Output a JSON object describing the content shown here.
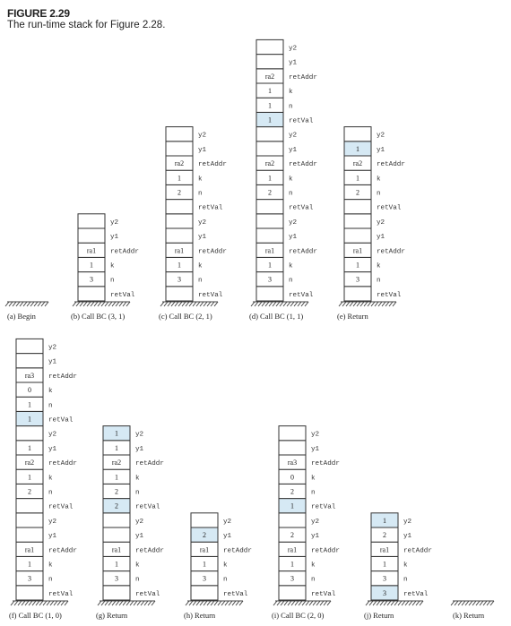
{
  "figure": {
    "number": "FIGURE 2.29",
    "caption": "The run-time stack for Figure 2.28."
  },
  "highlight_color": "#d6e9f4",
  "stacks": [
    {
      "id": "a",
      "caption": "(a) Begin",
      "cells": []
    },
    {
      "id": "b",
      "caption": "(b) Call BC (3, 1)",
      "cells": [
        {
          "label": "retVal",
          "value": ""
        },
        {
          "label": "n",
          "value": "3"
        },
        {
          "label": "k",
          "value": "1"
        },
        {
          "label": "retAddr",
          "value": "ra1"
        },
        {
          "label": "y1",
          "value": ""
        },
        {
          "label": "y2",
          "value": ""
        }
      ]
    },
    {
      "id": "c",
      "caption": "(c) Call BC (2, 1)",
      "cells": [
        {
          "label": "retVal",
          "value": ""
        },
        {
          "label": "n",
          "value": "3"
        },
        {
          "label": "k",
          "value": "1"
        },
        {
          "label": "retAddr",
          "value": "ra1"
        },
        {
          "label": "y1",
          "value": ""
        },
        {
          "label": "y2",
          "value": ""
        },
        {
          "label": "retVal",
          "value": ""
        },
        {
          "label": "n",
          "value": "2"
        },
        {
          "label": "k",
          "value": "1"
        },
        {
          "label": "retAddr",
          "value": "ra2"
        },
        {
          "label": "y1",
          "value": ""
        },
        {
          "label": "y2",
          "value": ""
        }
      ]
    },
    {
      "id": "d",
      "caption": "(d) Call BC (1, 1)",
      "cells": [
        {
          "label": "retVal",
          "value": ""
        },
        {
          "label": "n",
          "value": "3"
        },
        {
          "label": "k",
          "value": "1"
        },
        {
          "label": "retAddr",
          "value": "ra1"
        },
        {
          "label": "y1",
          "value": ""
        },
        {
          "label": "y2",
          "value": ""
        },
        {
          "label": "retVal",
          "value": ""
        },
        {
          "label": "n",
          "value": "2"
        },
        {
          "label": "k",
          "value": "1"
        },
        {
          "label": "retAddr",
          "value": "ra2"
        },
        {
          "label": "y1",
          "value": ""
        },
        {
          "label": "y2",
          "value": ""
        },
        {
          "label": "retVal",
          "value": "1",
          "hl": true
        },
        {
          "label": "n",
          "value": "1"
        },
        {
          "label": "k",
          "value": "1"
        },
        {
          "label": "retAddr",
          "value": "ra2"
        },
        {
          "label": "y1",
          "value": ""
        },
        {
          "label": "y2",
          "value": ""
        }
      ]
    },
    {
      "id": "e",
      "caption": "(e) Return",
      "cells": [
        {
          "label": "retVal",
          "value": ""
        },
        {
          "label": "n",
          "value": "3"
        },
        {
          "label": "k",
          "value": "1"
        },
        {
          "label": "retAddr",
          "value": "ra1"
        },
        {
          "label": "y1",
          "value": ""
        },
        {
          "label": "y2",
          "value": ""
        },
        {
          "label": "retVal",
          "value": ""
        },
        {
          "label": "n",
          "value": "2"
        },
        {
          "label": "k",
          "value": "1"
        },
        {
          "label": "retAddr",
          "value": "ra2"
        },
        {
          "label": "y1",
          "value": "1",
          "hl": true
        },
        {
          "label": "y2",
          "value": ""
        }
      ]
    },
    {
      "id": "f",
      "caption": "(f) Call BC (1, 0)",
      "cells": [
        {
          "label": "retVal",
          "value": ""
        },
        {
          "label": "n",
          "value": "3"
        },
        {
          "label": "k",
          "value": "1"
        },
        {
          "label": "retAddr",
          "value": "ra1"
        },
        {
          "label": "y1",
          "value": ""
        },
        {
          "label": "y2",
          "value": ""
        },
        {
          "label": "retVal",
          "value": ""
        },
        {
          "label": "n",
          "value": "2"
        },
        {
          "label": "k",
          "value": "1"
        },
        {
          "label": "retAddr",
          "value": "ra2"
        },
        {
          "label": "y1",
          "value": "1"
        },
        {
          "label": "y2",
          "value": ""
        },
        {
          "label": "retVal",
          "value": "1",
          "hl": true
        },
        {
          "label": "n",
          "value": "1"
        },
        {
          "label": "k",
          "value": "0"
        },
        {
          "label": "retAddr",
          "value": "ra3"
        },
        {
          "label": "y1",
          "value": ""
        },
        {
          "label": "y2",
          "value": ""
        }
      ]
    },
    {
      "id": "g",
      "caption": "(g) Return",
      "cells": [
        {
          "label": "retVal",
          "value": ""
        },
        {
          "label": "n",
          "value": "3"
        },
        {
          "label": "k",
          "value": "1"
        },
        {
          "label": "retAddr",
          "value": "ra1"
        },
        {
          "label": "y1",
          "value": ""
        },
        {
          "label": "y2",
          "value": ""
        },
        {
          "label": "retVal",
          "value": "2",
          "hl": true
        },
        {
          "label": "n",
          "value": "2"
        },
        {
          "label": "k",
          "value": "1"
        },
        {
          "label": "retAddr",
          "value": "ra2"
        },
        {
          "label": "y1",
          "value": "1"
        },
        {
          "label": "y2",
          "value": "1",
          "hl": true
        }
      ]
    },
    {
      "id": "h",
      "caption": "(h) Return",
      "cells": [
        {
          "label": "retVal",
          "value": ""
        },
        {
          "label": "n",
          "value": "3"
        },
        {
          "label": "k",
          "value": "1"
        },
        {
          "label": "retAddr",
          "value": "ra1"
        },
        {
          "label": "y1",
          "value": "2",
          "hl": true
        },
        {
          "label": "y2",
          "value": ""
        }
      ]
    },
    {
      "id": "i",
      "caption": "(i) Call BC (2, 0)",
      "cells": [
        {
          "label": "retVal",
          "value": ""
        },
        {
          "label": "n",
          "value": "3"
        },
        {
          "label": "k",
          "value": "1"
        },
        {
          "label": "retAddr",
          "value": "ra1"
        },
        {
          "label": "y1",
          "value": "2"
        },
        {
          "label": "y2",
          "value": ""
        },
        {
          "label": "retVal",
          "value": "1",
          "hl": true
        },
        {
          "label": "n",
          "value": "2"
        },
        {
          "label": "k",
          "value": "0"
        },
        {
          "label": "retAddr",
          "value": "ra3"
        },
        {
          "label": "y1",
          "value": ""
        },
        {
          "label": "y2",
          "value": ""
        }
      ]
    },
    {
      "id": "j",
      "caption": "(j) Return",
      "cells": [
        {
          "label": "retVal",
          "value": "3",
          "hl": true
        },
        {
          "label": "n",
          "value": "3"
        },
        {
          "label": "k",
          "value": "1"
        },
        {
          "label": "retAddr",
          "value": "ra1"
        },
        {
          "label": "y1",
          "value": "2"
        },
        {
          "label": "y2",
          "value": "1",
          "hl": true
        }
      ]
    },
    {
      "id": "k",
      "caption": "(k) Return",
      "cells": []
    }
  ]
}
